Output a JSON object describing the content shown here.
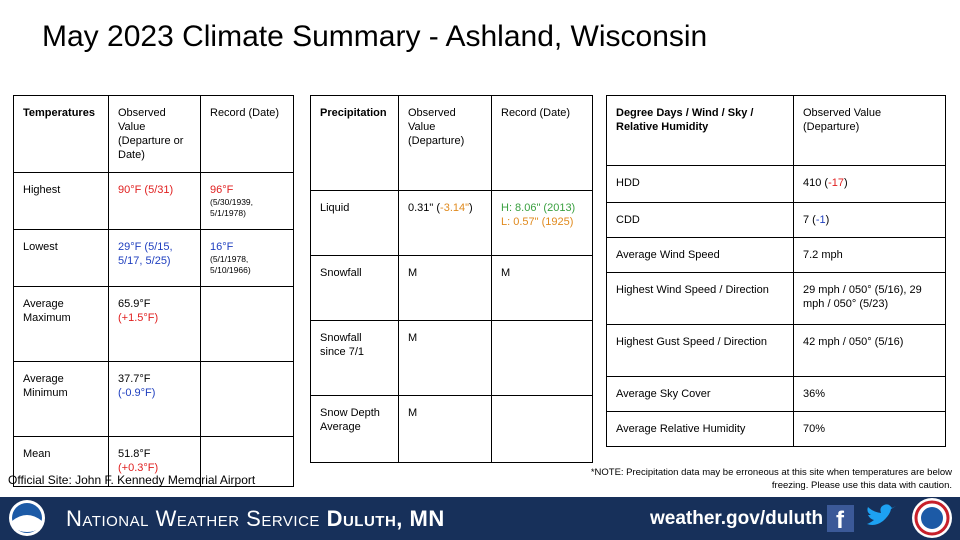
{
  "title": "May 2023 Climate Summary - Ashland, Wisconsin",
  "tables": [
    {
      "header": [
        [
          {
            "text": "Temperatures",
            "bold": true
          }
        ],
        [
          {
            "text": "Observed Value (Departure or Date)"
          }
        ],
        [
          {
            "text": "Record (Date)"
          }
        ]
      ],
      "rows": [
        [
          [
            {
              "text": "Highest"
            }
          ],
          [
            {
              "text": "90°F (5/31)",
              "color": "#e02020"
            }
          ],
          [
            {
              "text": "96°F",
              "color": "#e02020"
            },
            {
              "text": "(5/30/1939, 5/1/1978)",
              "small": true
            }
          ]
        ],
        [
          [
            {
              "text": "Lowest"
            }
          ],
          [
            {
              "text": "29°F (5/15, 5/17, 5/25)",
              "color": "#1f3fbf"
            }
          ],
          [
            {
              "text": "16°F",
              "color": "#1f3fbf"
            },
            {
              "text": "(5/1/1978, 5/10/1966)",
              "small": true
            }
          ]
        ],
        [
          [
            {
              "text": "Average Maximum"
            }
          ],
          [
            {
              "text": "65.9°F"
            },
            {
              "text": "(+1.5°F)",
              "color": "#e02020"
            }
          ],
          []
        ],
        [
          [
            {
              "text": "Average Minimum"
            }
          ],
          [
            {
              "text": "37.7°F"
            },
            {
              "text": "(-0.9°F)",
              "color": "#1f3fbf"
            }
          ],
          []
        ],
        [
          [
            {
              "text": "Mean"
            }
          ],
          [
            {
              "text": "51.8°F"
            },
            {
              "text": "(+0.3°F)",
              "color": "#e02020"
            }
          ],
          []
        ]
      ]
    },
    {
      "header": [
        [
          {
            "text": "Precipitation",
            "bold": true
          }
        ],
        [
          {
            "text": "Observed Value (Departure)"
          }
        ],
        [
          {
            "text": "Record (Date)"
          }
        ]
      ],
      "rows": [
        [
          [
            {
              "text": "Liquid"
            }
          ],
          [
            {
              "text": "0.31\" ("
            },
            {
              "text": "-3.14\"",
              "color": "#e08a1e"
            },
            {
              "text": ")"
            }
          ],
          [
            {
              "text": "H: 8.06\" (2013)",
              "color": "#3aa040"
            },
            {
              "text": "L: 0.57\" (1925)",
              "color": "#e08a1e"
            }
          ]
        ],
        [
          [
            {
              "text": "Snowfall"
            }
          ],
          [
            {
              "text": "M"
            }
          ],
          [
            {
              "text": "M"
            }
          ]
        ],
        [
          [
            {
              "text": "Snowfall since 7/1"
            }
          ],
          [
            {
              "text": "M"
            }
          ],
          []
        ],
        [
          [
            {
              "text": "Snow Depth Average"
            }
          ],
          [
            {
              "text": "M"
            }
          ],
          []
        ]
      ]
    },
    {
      "header": [
        [
          {
            "text": "Degree Days / Wind / Sky / Relative Humidity",
            "bold": true
          }
        ],
        [
          {
            "text": "Observed Value (Departure)"
          }
        ]
      ],
      "rows": [
        [
          [
            {
              "text": "HDD"
            }
          ],
          [
            {
              "text": "410 ("
            },
            {
              "text": "-17",
              "color": "#e02020"
            },
            {
              "text": ")"
            }
          ]
        ],
        [
          [
            {
              "text": "CDD"
            }
          ],
          [
            {
              "text": "7 ("
            },
            {
              "text": "-1",
              "color": "#1f3fbf"
            },
            {
              "text": ")"
            }
          ]
        ],
        [
          [
            {
              "text": "Average Wind Speed"
            }
          ],
          [
            {
              "text": "7.2 mph"
            }
          ]
        ],
        [
          [
            {
              "text": "Highest Wind Speed / Direction"
            }
          ],
          [
            {
              "text": "29 mph / 050° (5/16), 29 mph / 050° (5/23)"
            }
          ]
        ],
        [
          [
            {
              "text": "Highest Gust Speed / Direction"
            }
          ],
          [
            {
              "text": "42 mph / 050° (5/16)"
            }
          ]
        ],
        [
          [
            {
              "text": "Average Sky Cover"
            }
          ],
          [
            {
              "text": "36%"
            }
          ]
        ],
        [
          [
            {
              "text": "Average Relative Humidity"
            }
          ],
          [
            {
              "text": "70%"
            }
          ]
        ]
      ]
    }
  ],
  "site_note": "Official Site: John F. Kennedy Memorial Airport",
  "caution_note": "*NOTE:  Precipitation data may be erroneous at this site when temperatures are below freezing. Please use this data with caution.",
  "footer": {
    "agency": "National Weather Service",
    "office": "Duluth, MN",
    "url": "weather.gov/duluth"
  }
}
